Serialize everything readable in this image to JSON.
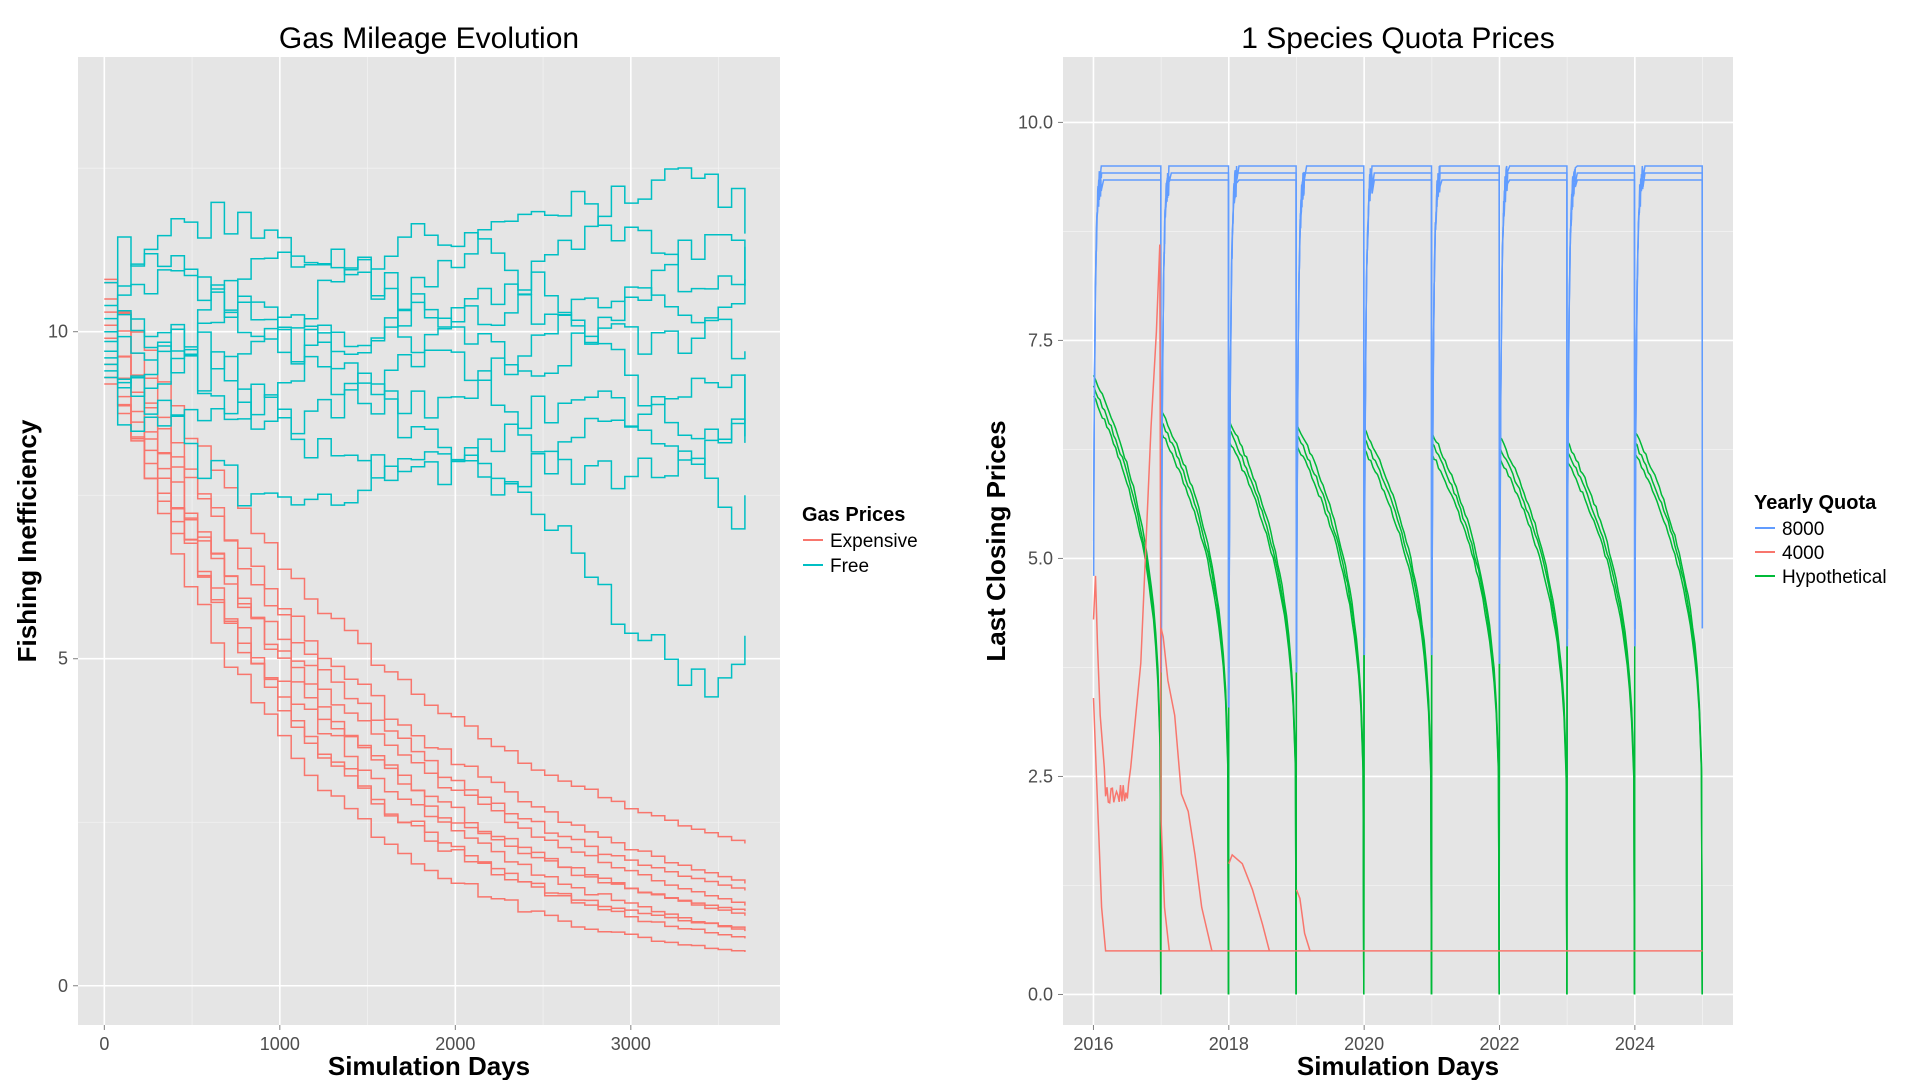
{
  "chart_data": [
    {
      "type": "line",
      "title": "Gas Mileage Evolution",
      "xlabel": "Simulation Days",
      "ylabel": "Fishing Inefficiency",
      "xlim": [
        -150,
        3850
      ],
      "ylim": [
        -0.6,
        14.2
      ],
      "x_ticks": [
        "0",
        "1000",
        "2000",
        "3000"
      ],
      "y_ticks": [
        "0",
        "5",
        "10"
      ],
      "grid": true,
      "legend": {
        "title": "Gas Prices",
        "placement": "right"
      },
      "series": [
        {
          "name": "Expensive",
          "color": "#F8766D",
          "start_values": [
            10.8,
            10.75,
            10.5,
            10.3,
            10.1,
            9.9,
            9.7,
            9.5,
            9.3,
            9.2
          ],
          "end_values": [
            1.1,
            0.75,
            0.7,
            0.6,
            0.5,
            0.4,
            0.3,
            0.25,
            0.22,
            0.2
          ],
          "line_count": 10,
          "x_range": [
            0,
            3650
          ]
        },
        {
          "name": "Free",
          "color": "#00BFC4",
          "start_values": [
            10.75,
            10.4,
            10.2,
            10.0,
            9.85,
            9.7,
            9.6,
            9.5,
            9.4,
            9.3
          ],
          "end_values": [
            11.5,
            11.3,
            10.8,
            10.7,
            9.7,
            9.35,
            8.4,
            8.3,
            7.5,
            5.35
          ],
          "line_count": 10,
          "x_range": [
            0,
            3650
          ]
        }
      ]
    },
    {
      "type": "line",
      "title": "1 Species Quota Prices",
      "xlabel": "Simulation Days",
      "ylabel": "Last Closing Prices",
      "xlim": [
        2015.55,
        2025.45
      ],
      "ylim": [
        -0.35,
        10.75
      ],
      "x_ticks": [
        "2016",
        "2018",
        "2020",
        "2022",
        "2024"
      ],
      "y_ticks": [
        "0.0",
        "2.5",
        "5.0",
        "7.5",
        "10.0"
      ],
      "grid": true,
      "legend": {
        "title": "Yearly Quota",
        "placement": "right"
      },
      "series": [
        {
          "name": "8000",
          "color": "#619CFF",
          "yearly_high": 9.5,
          "yearly_low": [
            4.8,
            3.7,
            3.3,
            3.7,
            3.9,
            3.9,
            3.8,
            4.0,
            4.0
          ],
          "final_value": 4.2
        },
        {
          "name": "4000",
          "color": "#F8766D",
          "floor": 0.5,
          "first_year_peak": 8.6,
          "spikes": [
            4.8,
            4.1,
            1.6,
            1.2
          ]
        },
        {
          "name": "Hypothetical",
          "color": "#00BA38",
          "yearly_start": [
            7.1,
            6.7,
            6.6,
            6.55,
            6.5,
            6.45,
            6.4,
            6.35,
            6.45
          ],
          "yearly_end": 0.0
        }
      ]
    }
  ]
}
